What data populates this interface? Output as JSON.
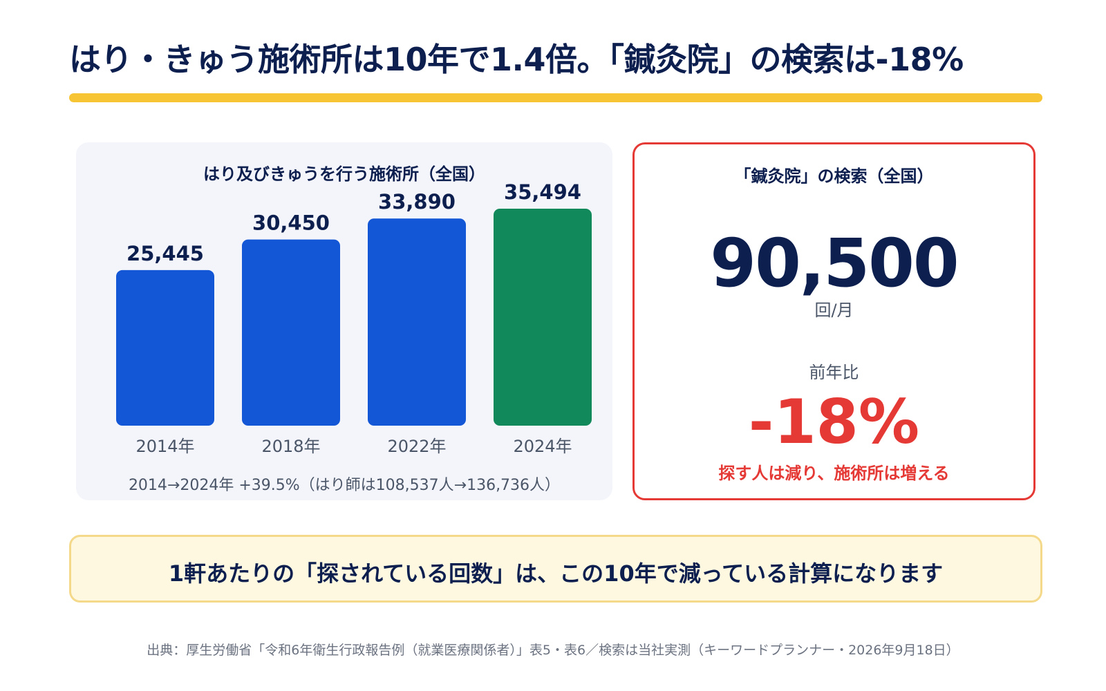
{
  "header": {
    "title": "はり・きゅう施術所は10年で1.4倍。「鍼灸院」の検索は-18%"
  },
  "colors": {
    "accent_yellow": "#f7c433",
    "bar_blue": "#1357d6",
    "bar_green": "#12895a",
    "alert_red": "#e53935",
    "navy": "#0d1f4f"
  },
  "chart_data": {
    "type": "bar",
    "title": "はり及びきゅうを行う施術所（全国）",
    "categories": [
      "2014年",
      "2018年",
      "2022年",
      "2024年"
    ],
    "values": [
      25445,
      30450,
      33890,
      35494
    ],
    "value_labels": [
      "25,445",
      "30,450",
      "33,890",
      "35,494"
    ],
    "highlight_index": 3,
    "xlabel": "",
    "ylabel": "",
    "grid": false,
    "legend": "none",
    "note": "2014→2024年 +39.5%（はり師は108,537人→136,736人）"
  },
  "stat": {
    "title": "「鍼灸院」の検索（全国）",
    "value": "90,500",
    "unit": "回/月",
    "compare_label": "前年比",
    "compare_value": "-18%",
    "caption": "探す人は減り、施術所は増える"
  },
  "callout": {
    "text": "1軒あたりの「探されている回数」は、この10年で減っている計算になります"
  },
  "footer": {
    "source": "出典：厚生労働省「令和6年衛生行政報告例（就業医療関係者）」表5・表6／検索は当社実測（キーワードプランナー・2026年9月18日）"
  }
}
